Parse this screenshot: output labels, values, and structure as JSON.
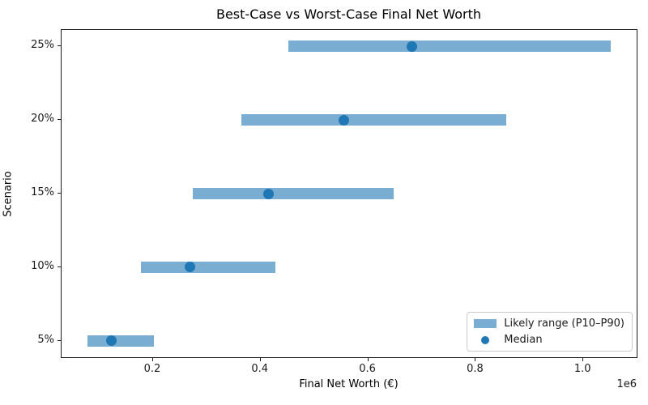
{
  "chart_data": {
    "type": "bar",
    "subtype": "horizontal_range_plot",
    "title": "Best-Case vs Worst-Case Final Net Worth",
    "xlabel": "Final Net Worth (€)",
    "ylabel": "Scenario",
    "axis_offset_label": "1e6",
    "categories": [
      "5%",
      "10%",
      "15%",
      "20%",
      "25%"
    ],
    "series": [
      {
        "name": "Likely range (P10–P90)",
        "type": "range_bar",
        "p10": [
          78000,
          177000,
          274000,
          365000,
          451000
        ],
        "p90": [
          201000,
          427000,
          647000,
          857000,
          1051000
        ]
      },
      {
        "name": "Median",
        "type": "scatter",
        "values": [
          123000,
          269000,
          415000,
          555000,
          681000
        ]
      }
    ],
    "xlim": [
      30000,
      1099000
    ],
    "xticks": [
      200000,
      400000,
      600000,
      800000,
      1000000
    ],
    "xtick_labels": [
      "0.2",
      "0.4",
      "0.6",
      "0.8",
      "1.0"
    ],
    "grid": false,
    "legend_position": "lower right",
    "colors": {
      "range_bar": "#79add2",
      "median": "#1f77b4",
      "spine": "#1a1a1a",
      "background": "#ffffff"
    }
  }
}
